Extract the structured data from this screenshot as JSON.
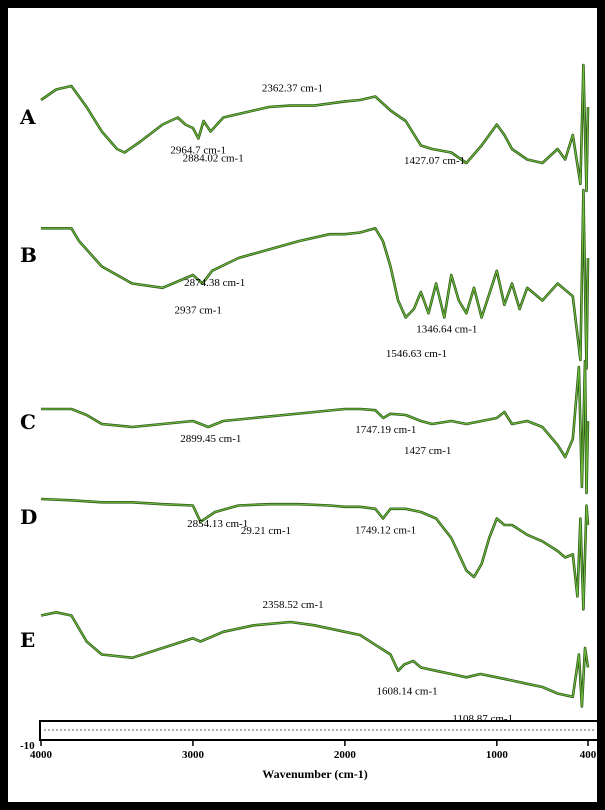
{
  "chart_data": {
    "type": "line",
    "title": "",
    "xlabel": "Wavenumber (cm-1)",
    "ylabel": "",
    "xlim": [
      4000,
      400
    ],
    "x_ticks": [
      "4000",
      "3000",
      "2000",
      "1000",
      "400"
    ],
    "y_tick_label": "-10",
    "grid": false,
    "colors": {
      "trace": "#2f5a1c",
      "trace_highlight": "#6fbf3a"
    },
    "series": [
      {
        "name": "A",
        "points": [
          [
            4000,
            0.2
          ],
          [
            3900,
            0.05
          ],
          [
            3800,
            0.0
          ],
          [
            3700,
            0.3
          ],
          [
            3600,
            0.65
          ],
          [
            3500,
            0.9
          ],
          [
            3450,
            0.95
          ],
          [
            3350,
            0.8
          ],
          [
            3200,
            0.55
          ],
          [
            3100,
            0.45
          ],
          [
            3050,
            0.55
          ],
          [
            3000,
            0.6
          ],
          [
            2964,
            0.75
          ],
          [
            2930,
            0.5
          ],
          [
            2884,
            0.65
          ],
          [
            2800,
            0.45
          ],
          [
            2700,
            0.4
          ],
          [
            2500,
            0.3
          ],
          [
            2362,
            0.28
          ],
          [
            2200,
            0.28
          ],
          [
            2000,
            0.22
          ],
          [
            1900,
            0.2
          ],
          [
            1800,
            0.15
          ],
          [
            1700,
            0.35
          ],
          [
            1600,
            0.5
          ],
          [
            1500,
            0.85
          ],
          [
            1427,
            0.9
          ],
          [
            1300,
            0.95
          ],
          [
            1200,
            1.1
          ],
          [
            1100,
            0.85
          ],
          [
            1000,
            0.55
          ],
          [
            950,
            0.7
          ],
          [
            900,
            0.9
          ],
          [
            800,
            1.05
          ],
          [
            700,
            1.1
          ],
          [
            600,
            0.9
          ],
          [
            550,
            1.05
          ],
          [
            500,
            0.7
          ],
          [
            450,
            1.4
          ],
          [
            430,
            -0.3
          ],
          [
            410,
            1.5
          ],
          [
            400,
            0.3
          ]
        ],
        "annotations": [
          {
            "text": "2362.37 cm-1",
            "x": 2362,
            "pos": "above"
          },
          {
            "text": "2964.7 cm-1",
            "x": 2964,
            "pos": "below1"
          },
          {
            "text": "2884.02 cm-1",
            "x": 2884,
            "pos": "below2"
          },
          {
            "text": "1427.07 cm-1",
            "x": 1427,
            "pos": "below1"
          }
        ]
      },
      {
        "name": "B",
        "points": [
          [
            4000,
            0.05
          ],
          [
            3800,
            0.05
          ],
          [
            3750,
            0.2
          ],
          [
            3600,
            0.5
          ],
          [
            3400,
            0.7
          ],
          [
            3200,
            0.75
          ],
          [
            3000,
            0.6
          ],
          [
            2937,
            0.7
          ],
          [
            2874,
            0.55
          ],
          [
            2700,
            0.4
          ],
          [
            2500,
            0.3
          ],
          [
            2300,
            0.2
          ],
          [
            2100,
            0.12
          ],
          [
            2000,
            0.12
          ],
          [
            1900,
            0.1
          ],
          [
            1800,
            0.05
          ],
          [
            1750,
            0.2
          ],
          [
            1700,
            0.5
          ],
          [
            1650,
            0.9
          ],
          [
            1600,
            1.1
          ],
          [
            1546,
            1.0
          ],
          [
            1500,
            0.8
          ],
          [
            1450,
            1.05
          ],
          [
            1400,
            0.7
          ],
          [
            1346,
            1.1
          ],
          [
            1300,
            0.6
          ],
          [
            1250,
            0.9
          ],
          [
            1200,
            1.05
          ],
          [
            1150,
            0.75
          ],
          [
            1100,
            1.1
          ],
          [
            1000,
            0.55
          ],
          [
            950,
            0.95
          ],
          [
            900,
            0.7
          ],
          [
            850,
            1.0
          ],
          [
            800,
            0.75
          ],
          [
            700,
            0.9
          ],
          [
            600,
            0.7
          ],
          [
            500,
            0.85
          ],
          [
            450,
            1.6
          ],
          [
            430,
            -0.4
          ],
          [
            410,
            1.7
          ],
          [
            400,
            0.4
          ]
        ],
        "annotations": [
          {
            "text": "2874.38 cm-1",
            "x": 2874,
            "pos": "below1"
          },
          {
            "text": "2937 cm-1",
            "x": 2937,
            "pos": "below2"
          },
          {
            "text": "1346.64 cm-1",
            "x": 1346,
            "pos": "below1"
          },
          {
            "text": "1546.63 cm-1",
            "x": 1546,
            "pos": "below3"
          }
        ]
      },
      {
        "name": "C",
        "points": [
          [
            4000,
            0.3
          ],
          [
            3800,
            0.3
          ],
          [
            3700,
            0.4
          ],
          [
            3600,
            0.55
          ],
          [
            3400,
            0.6
          ],
          [
            3200,
            0.55
          ],
          [
            3000,
            0.5
          ],
          [
            2899,
            0.6
          ],
          [
            2800,
            0.5
          ],
          [
            2600,
            0.45
          ],
          [
            2400,
            0.4
          ],
          [
            2200,
            0.35
          ],
          [
            2000,
            0.3
          ],
          [
            1900,
            0.3
          ],
          [
            1800,
            0.32
          ],
          [
            1747,
            0.45
          ],
          [
            1700,
            0.38
          ],
          [
            1600,
            0.4
          ],
          [
            1500,
            0.5
          ],
          [
            1427,
            0.55
          ],
          [
            1300,
            0.5
          ],
          [
            1200,
            0.55
          ],
          [
            1100,
            0.5
          ],
          [
            1000,
            0.45
          ],
          [
            950,
            0.35
          ],
          [
            900,
            0.55
          ],
          [
            800,
            0.5
          ],
          [
            700,
            0.6
          ],
          [
            600,
            0.9
          ],
          [
            550,
            1.1
          ],
          [
            500,
            0.8
          ],
          [
            460,
            -0.4
          ],
          [
            440,
            1.6
          ],
          [
            420,
            -0.5
          ],
          [
            410,
            1.7
          ],
          [
            400,
            0.5
          ]
        ],
        "annotations": [
          {
            "text": "2899.45 cm-1",
            "x": 2899,
            "pos": "below1"
          },
          {
            "text": "1747.19 cm-1",
            "x": 1747,
            "pos": "below1"
          },
          {
            "text": "1427 cm-1",
            "x": 1427,
            "pos": "below2"
          }
        ]
      },
      {
        "name": "D",
        "points": [
          [
            4000,
            0.2
          ],
          [
            3800,
            0.22
          ],
          [
            3600,
            0.25
          ],
          [
            3400,
            0.25
          ],
          [
            3200,
            0.28
          ],
          [
            3000,
            0.3
          ],
          [
            2950,
            0.55
          ],
          [
            2854,
            0.4
          ],
          [
            2700,
            0.3
          ],
          [
            2500,
            0.28
          ],
          [
            2300,
            0.28
          ],
          [
            2100,
            0.3
          ],
          [
            2000,
            0.32
          ],
          [
            1900,
            0.32
          ],
          [
            1800,
            0.35
          ],
          [
            1749,
            0.5
          ],
          [
            1700,
            0.35
          ],
          [
            1600,
            0.35
          ],
          [
            1500,
            0.4
          ],
          [
            1400,
            0.5
          ],
          [
            1300,
            0.8
          ],
          [
            1200,
            1.3
          ],
          [
            1150,
            1.4
          ],
          [
            1100,
            1.2
          ],
          [
            1050,
            0.8
          ],
          [
            1000,
            0.5
          ],
          [
            950,
            0.6
          ],
          [
            900,
            0.6
          ],
          [
            800,
            0.75
          ],
          [
            700,
            0.85
          ],
          [
            600,
            1.0
          ],
          [
            550,
            1.1
          ],
          [
            500,
            1.05
          ],
          [
            470,
            1.7
          ],
          [
            450,
            0.5
          ],
          [
            430,
            1.9
          ],
          [
            410,
            0.3
          ],
          [
            400,
            0.6
          ]
        ],
        "annotations": [
          {
            "text": "2854.13 cm-1",
            "x": 2854,
            "pos": "below1"
          },
          {
            "text": "29.21 cm-1",
            "x": 2500,
            "pos": "below2"
          },
          {
            "text": "1749.12 cm-1",
            "x": 1749,
            "pos": "below1"
          }
        ]
      },
      {
        "name": "E",
        "points": [
          [
            4000,
            0.1
          ],
          [
            3900,
            0.05
          ],
          [
            3800,
            0.1
          ],
          [
            3700,
            0.5
          ],
          [
            3600,
            0.7
          ],
          [
            3400,
            0.75
          ],
          [
            3200,
            0.6
          ],
          [
            3000,
            0.45
          ],
          [
            2950,
            0.5
          ],
          [
            2800,
            0.35
          ],
          [
            2600,
            0.25
          ],
          [
            2358,
            0.2
          ],
          [
            2200,
            0.25
          ],
          [
            2000,
            0.35
          ],
          [
            1900,
            0.4
          ],
          [
            1800,
            0.55
          ],
          [
            1700,
            0.7
          ],
          [
            1650,
            0.95
          ],
          [
            1608,
            0.85
          ],
          [
            1550,
            0.8
          ],
          [
            1500,
            0.9
          ],
          [
            1400,
            0.95
          ],
          [
            1300,
            1.0
          ],
          [
            1200,
            1.05
          ],
          [
            1108,
            1.0
          ],
          [
            1000,
            1.05
          ],
          [
            900,
            1.1
          ],
          [
            800,
            1.15
          ],
          [
            700,
            1.2
          ],
          [
            600,
            1.3
          ],
          [
            500,
            1.35
          ],
          [
            460,
            0.7
          ],
          [
            440,
            1.5
          ],
          [
            420,
            0.6
          ],
          [
            400,
            0.9
          ]
        ],
        "annotations": [
          {
            "text": "2358.52 cm-1",
            "x": 2358,
            "pos": "above"
          },
          {
            "text": "1608.14 cm-1",
            "x": 1608,
            "pos": "below2"
          },
          {
            "text": "1108.87 cm-1",
            "x": 1108,
            "pos": "below3"
          }
        ]
      }
    ]
  }
}
